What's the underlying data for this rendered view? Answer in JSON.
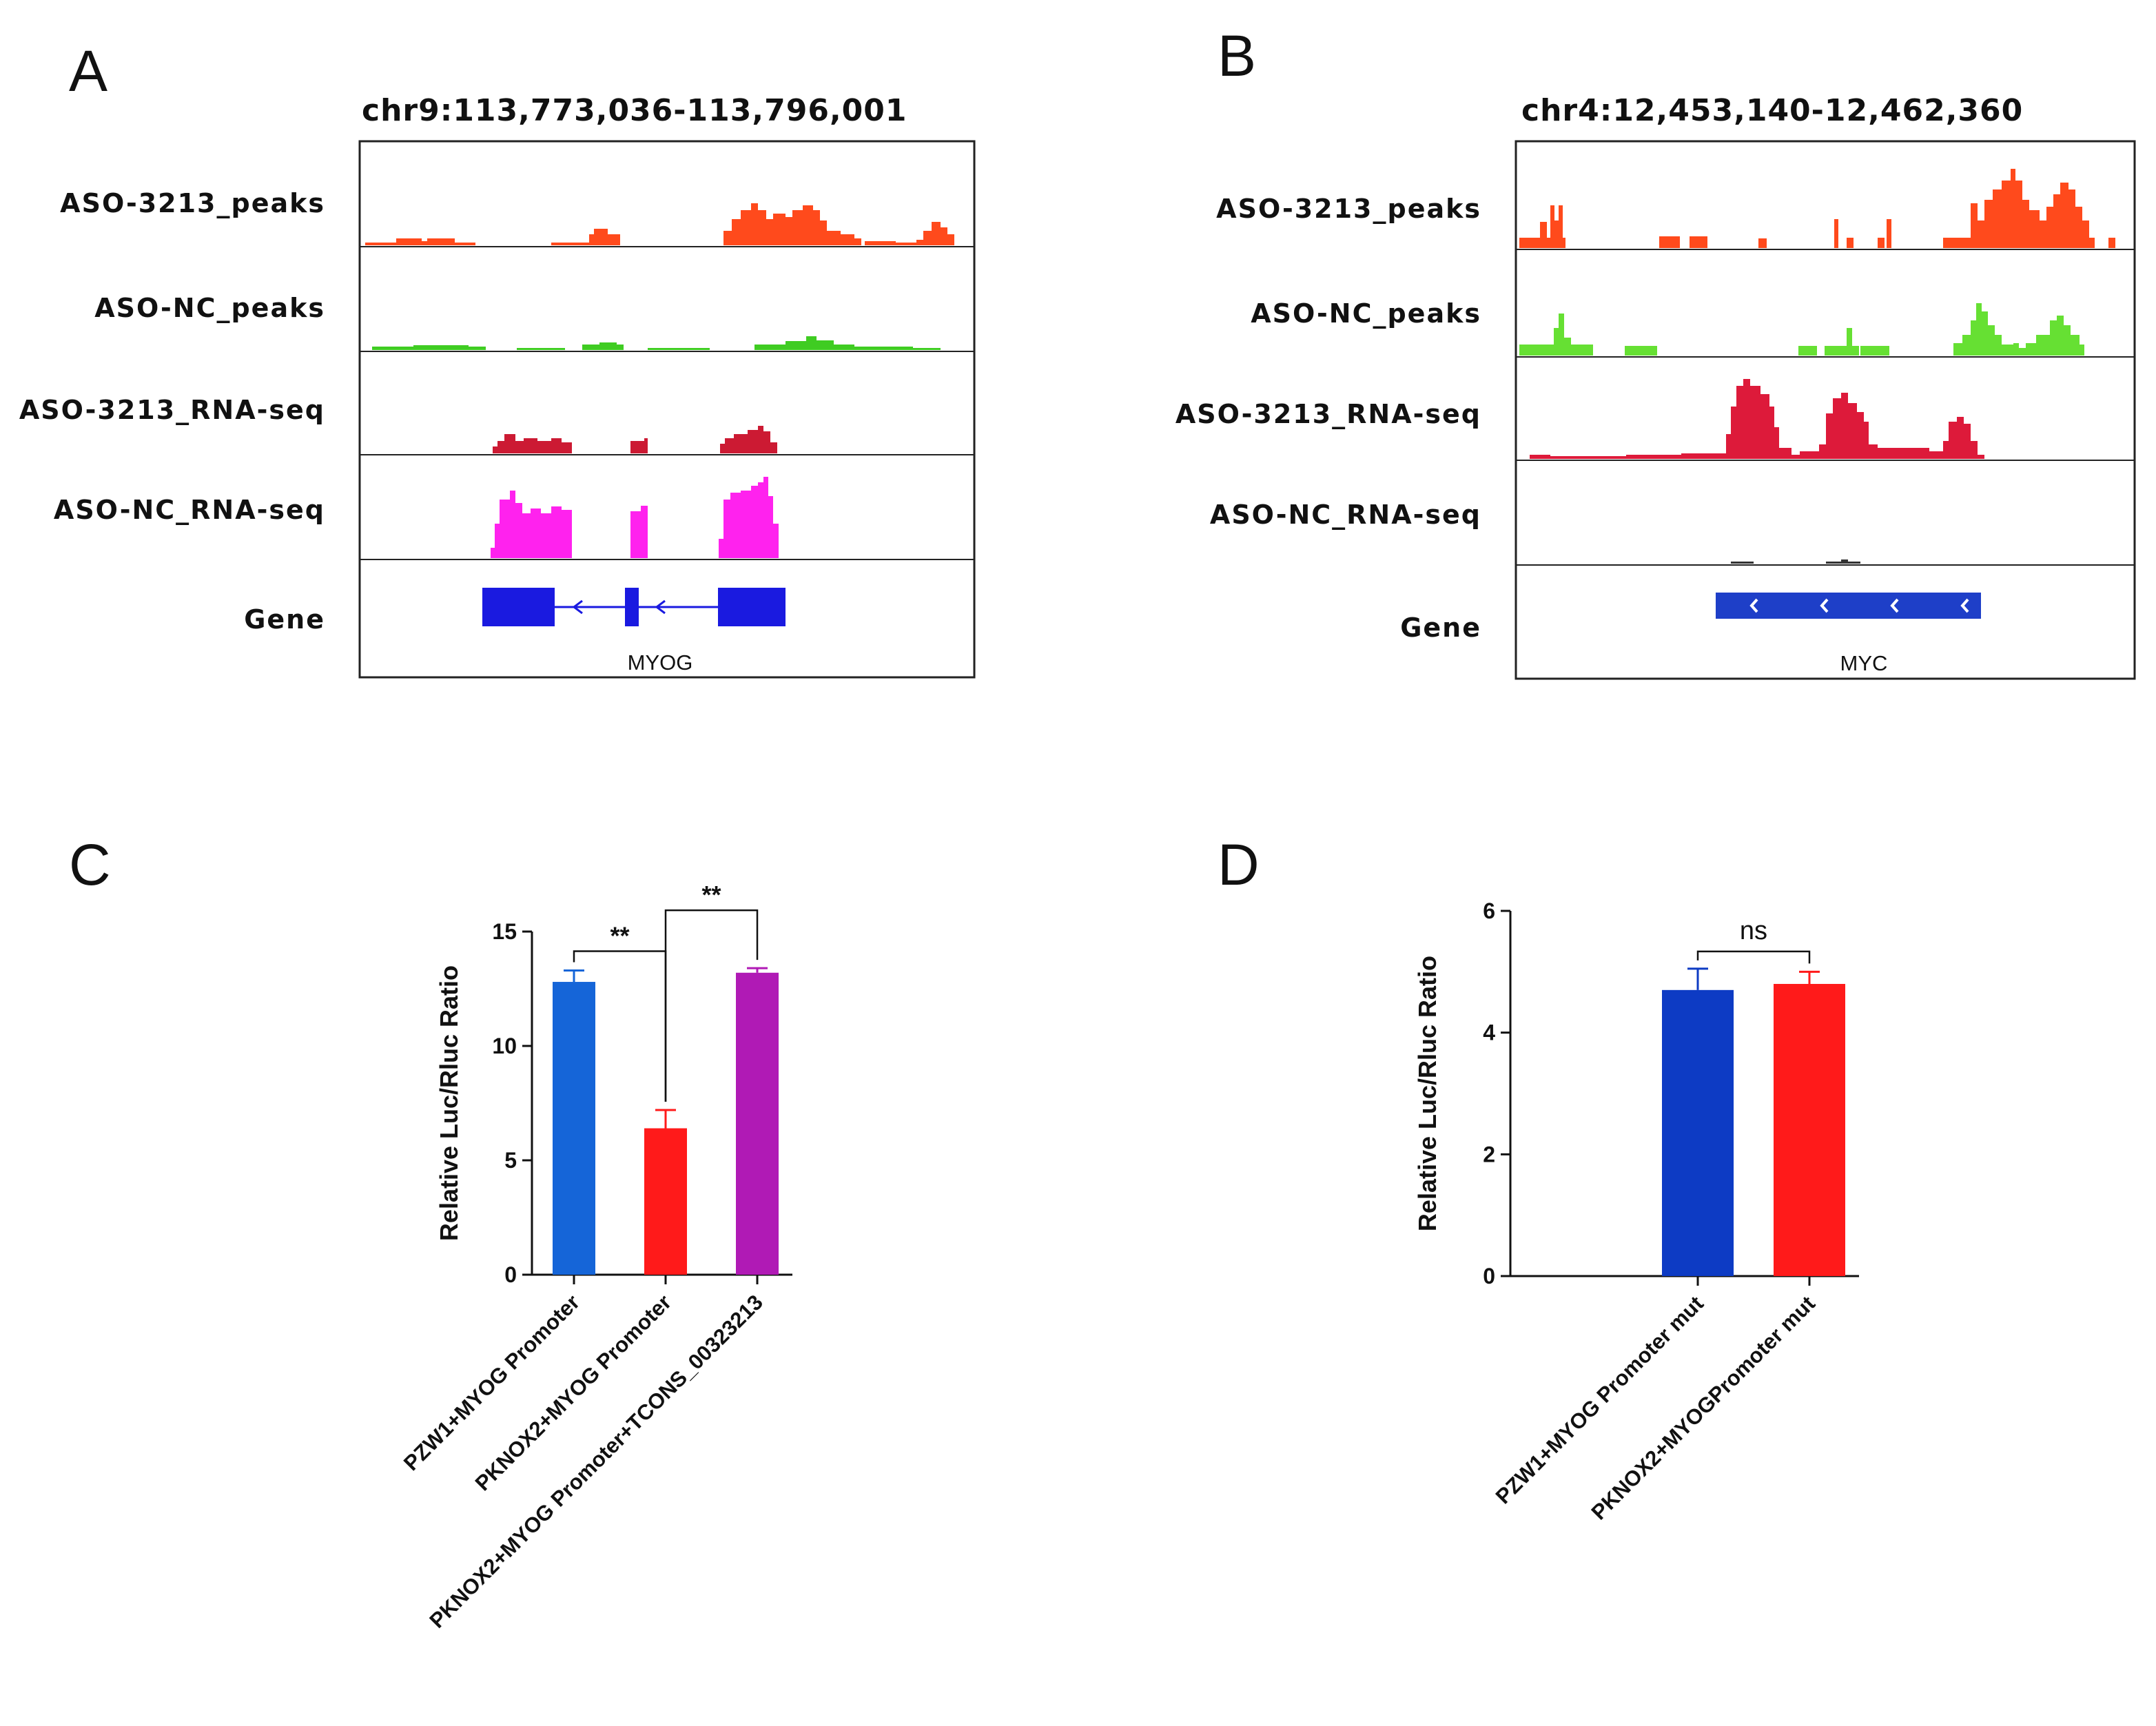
{
  "panels": {
    "a": {
      "letter": "A",
      "locus": "chr9:113,773,036-113,796,001",
      "tracks": [
        {
          "label": "ASO-3213_peaks",
          "color": "#ff4a1c"
        },
        {
          "label": "ASO-NC_peaks",
          "color": "#3fcc22"
        },
        {
          "label": "ASO-3213_RNA-seq",
          "color": "#cc1a33"
        },
        {
          "label": "ASO-NC_RNA-seq",
          "color": "#ff22ee"
        }
      ],
      "gene_label": "Gene",
      "gene_name": "MYOG",
      "gene_color": "#1a1ae0"
    },
    "b": {
      "letter": "B",
      "locus": "chr4:12,453,140-12,462,360",
      "tracks": [
        {
          "label": "ASO-3213_peaks",
          "color": "#ff4a1c"
        },
        {
          "label": "ASO-NC_peaks",
          "color": "#66e033"
        },
        {
          "label": "ASO-3213_RNA-seq",
          "color": "#dd1a3a"
        },
        {
          "label": "ASO-NC_RNA-seq",
          "color": "#333333"
        }
      ],
      "gene_label": "Gene",
      "gene_name": "MYC",
      "gene_color": "#1e3fc8"
    },
    "c": {
      "letter": "C"
    },
    "d": {
      "letter": "D"
    }
  },
  "chart_data": [
    {
      "id": "c",
      "type": "bar",
      "title": "",
      "xlabel": "",
      "ylabel": "Relative Luc/Rluc Ratio",
      "ylim": [
        0,
        15
      ],
      "yticks": [
        0,
        5,
        10,
        15
      ],
      "categories": [
        "PZW1+MYOG Promoter",
        "PKNOX2+MYOG Promoter",
        "PKNOX2+MYOG Promoter+TCONS_00323213"
      ],
      "values": [
        12.8,
        6.4,
        13.2
      ],
      "errors": [
        0.5,
        0.8,
        0.2
      ],
      "colors": [
        "#1565d8",
        "#ff1a1a",
        "#b01ab5"
      ],
      "comparisons": [
        {
          "from": 0,
          "to": 1,
          "label": "**"
        },
        {
          "from": 1,
          "to": 2,
          "label": "**"
        }
      ]
    },
    {
      "id": "d",
      "type": "bar",
      "title": "",
      "xlabel": "",
      "ylabel": "Relative Luc/Rluc Ratio",
      "ylim": [
        0,
        6
      ],
      "yticks": [
        0,
        2,
        4,
        6
      ],
      "categories": [
        "PZW1+MYOG Promoter mut",
        "PKNOX2+MYOGPromoter mut"
      ],
      "values": [
        4.7,
        4.8
      ],
      "errors": [
        0.35,
        0.2
      ],
      "colors": [
        "#0d3bc4",
        "#ff1a1a"
      ],
      "comparisons": [
        {
          "from": 0,
          "to": 1,
          "label": "ns"
        }
      ]
    }
  ]
}
